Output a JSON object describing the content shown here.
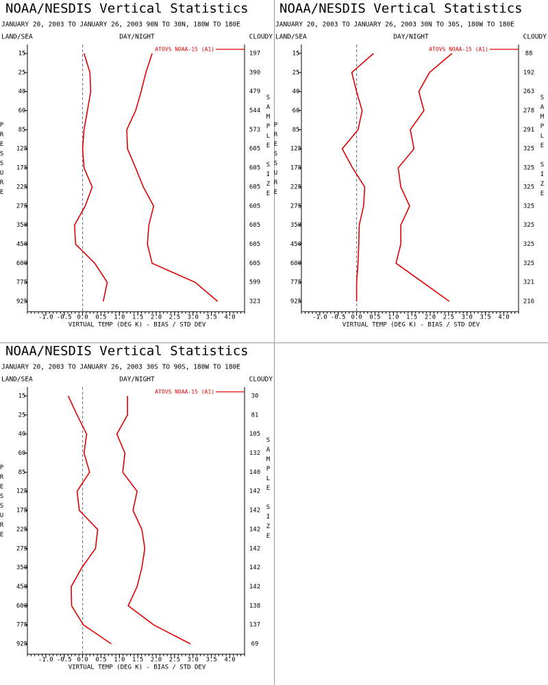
{
  "chart_data": [
    {
      "type": "profile",
      "title": "NOAA/NESDIS Vertical Statistics",
      "subtitle": "JANUARY 20, 2003 TO JANUARY 26, 2003 90N TO 30N, 180W TO 180E",
      "top_labels": [
        "LAND/SEA",
        "DAY/NIGHT",
        "CLOUDY"
      ],
      "ylabel": "PRESSURE",
      "y2label": "SAMPLE SIZE",
      "xlabel": "VIRTUAL TEMP (DEG K) - BIAS / STD DEV",
      "categories": [
        "15",
        "25",
        "40",
        "60",
        "85",
        "125",
        "175",
        "225",
        "275",
        "350",
        "450",
        "600",
        "775",
        "925"
      ],
      "sample_size": [
        "197",
        "390",
        "479",
        "544",
        "573",
        "605",
        "605",
        "605",
        "605",
        "605",
        "605",
        "605",
        "599",
        "323"
      ],
      "series": [
        {
          "name": "ATOVS NOAA-15 (A1)",
          "color": "#e00000",
          "bias": [
            0.04,
            0.2,
            0.22,
            0.13,
            0.04,
            0.0,
            0.04,
            0.26,
            0.07,
            -0.22,
            -0.19,
            0.33,
            0.67,
            0.56
          ],
          "std_dev": [
            1.89,
            1.72,
            1.59,
            1.44,
            1.2,
            1.22,
            1.44,
            1.65,
            1.93,
            1.8,
            1.76,
            1.89,
            3.06,
            3.67
          ]
        }
      ],
      "xlim": [
        -1.5,
        4.4
      ],
      "xticks": [
        {
          "value": -1,
          "label": "-1.0"
        },
        -0.5,
        {
          "value": 0,
          "label": "0.0"
        },
        0.5,
        {
          "value": 1,
          "label": "1.0"
        },
        1.5,
        {
          "value": 2,
          "label": "2.0"
        },
        2.5,
        {
          "value": 3,
          "label": "3.0"
        },
        3.5,
        {
          "value": 4,
          "label": "4.0"
        }
      ]
    },
    {
      "type": "profile",
      "title": "NOAA/NESDIS Vertical Statistics",
      "subtitle": "JANUARY 20, 2003 TO JANUARY 26, 2003 30N TO 30S, 180W TO 180E",
      "top_labels": [
        "LAND/SEA",
        "DAY/NIGHT",
        "CLOUDY"
      ],
      "ylabel": "PRESSURE",
      "y2label": "SAMPLE SIZE",
      "xlabel": "VIRTUAL TEMP (DEG K) - BIAS / STD DEV",
      "categories": [
        "15",
        "25",
        "40",
        "60",
        "85",
        "125",
        "175",
        "225",
        "275",
        "350",
        "450",
        "600",
        "775",
        "925"
      ],
      "sample_size": [
        "88",
        "192",
        "263",
        "278",
        "291",
        "325",
        "325",
        "325",
        "325",
        "325",
        "325",
        "325",
        "321",
        "216"
      ],
      "series": [
        {
          "name": "ATOVS NOAA-15 (A1)",
          "color": "#e00000",
          "bias": [
            0.46,
            -0.13,
            0.0,
            0.15,
            0.04,
            -0.39,
            -0.11,
            0.22,
            0.19,
            0.07,
            0.06,
            0.04,
            0.0,
            0.0
          ],
          "std_dev": [
            2.59,
            1.98,
            1.69,
            1.83,
            1.46,
            1.56,
            1.13,
            1.2,
            1.44,
            1.2,
            1.2,
            1.07,
            1.8,
            2.52
          ]
        }
      ],
      "xlim": [
        -1.5,
        4.4
      ],
      "xticks": [
        {
          "value": -1,
          "label": "-1.0"
        },
        -0.5,
        {
          "value": 0,
          "label": "0.0"
        },
        0.5,
        {
          "value": 1,
          "label": "1.0"
        },
        1.5,
        {
          "value": 2,
          "label": "2.0"
        },
        2.5,
        {
          "value": 3,
          "label": "3.0"
        },
        3.5,
        {
          "value": 4,
          "label": "4.0"
        }
      ]
    },
    {
      "type": "profile",
      "title": "NOAA/NESDIS Vertical Statistics",
      "subtitle": "JANUARY 20, 2003 TO JANUARY 26, 2003 30S TO 90S, 180W TO 180E",
      "top_labels": [
        "LAND/SEA",
        "DAY/NIGHT",
        "CLOUDY"
      ],
      "ylabel": "PRESSURE",
      "y2label": "SAMPLE SIZE",
      "xlabel": "VIRTUAL TEMP (DEG K) - BIAS / STD DEV",
      "categories": [
        "15",
        "25",
        "40",
        "60",
        "85",
        "125",
        "175",
        "225",
        "275",
        "350",
        "450",
        "600",
        "775",
        "925"
      ],
      "sample_size": [
        "30",
        "81",
        "105",
        "132",
        "140",
        "142",
        "142",
        "142",
        "142",
        "142",
        "142",
        "138",
        "137",
        "69"
      ],
      "series": [
        {
          "name": "ATOVS NOAA-15 (A1)",
          "color": "#e00000",
          "bias": [
            -0.39,
            -0.15,
            0.11,
            0.04,
            0.19,
            -0.15,
            -0.09,
            0.41,
            0.35,
            -0.02,
            -0.31,
            -0.3,
            0.02,
            0.78
          ],
          "std_dev": [
            1.22,
            1.22,
            0.93,
            1.15,
            1.09,
            1.48,
            1.37,
            1.61,
            1.69,
            1.61,
            1.48,
            1.24,
            1.93,
            2.93
          ]
        }
      ],
      "xlim": [
        -1.5,
        4.4
      ],
      "xticks": [
        {
          "value": -1,
          "label": "-1.0"
        },
        -0.5,
        {
          "value": 0,
          "label": "0.0"
        },
        0.5,
        {
          "value": 1,
          "label": "1.0"
        },
        1.5,
        {
          "value": 2,
          "label": "2.0"
        },
        2.5,
        {
          "value": 3,
          "label": "3.0"
        },
        3.5,
        {
          "value": 4,
          "label": "4.0"
        }
      ]
    }
  ]
}
